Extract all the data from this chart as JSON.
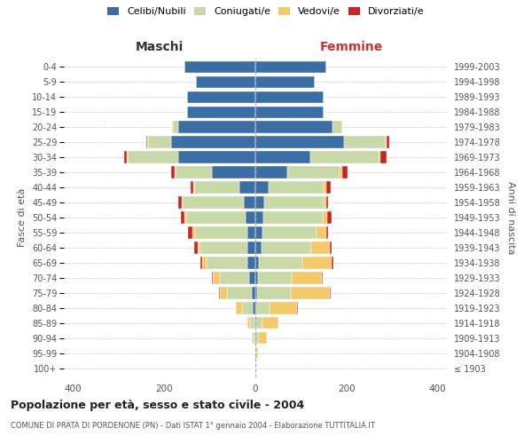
{
  "age_groups": [
    "100+",
    "95-99",
    "90-94",
    "85-89",
    "80-84",
    "75-79",
    "70-74",
    "65-69",
    "60-64",
    "55-59",
    "50-54",
    "45-49",
    "40-44",
    "35-39",
    "30-34",
    "25-29",
    "20-24",
    "15-19",
    "10-14",
    "5-9",
    "0-4"
  ],
  "birth_years": [
    "≤ 1903",
    "1904-1908",
    "1909-1913",
    "1914-1918",
    "1919-1923",
    "1924-1928",
    "1929-1933",
    "1934-1938",
    "1939-1943",
    "1944-1948",
    "1949-1953",
    "1954-1958",
    "1959-1963",
    "1964-1968",
    "1969-1973",
    "1974-1978",
    "1979-1983",
    "1984-1988",
    "1989-1993",
    "1994-1998",
    "1999-2003"
  ],
  "male": {
    "celibi": [
      0,
      0,
      0,
      2,
      5,
      8,
      13,
      17,
      17,
      18,
      22,
      25,
      35,
      95,
      170,
      185,
      170,
      150,
      150,
      130,
      155
    ],
    "coniugati": [
      0,
      2,
      5,
      10,
      25,
      55,
      65,
      90,
      105,
      115,
      130,
      135,
      100,
      80,
      110,
      50,
      10,
      0,
      0,
      0,
      0
    ],
    "vedovi": [
      0,
      0,
      2,
      5,
      12,
      15,
      15,
      10,
      5,
      5,
      3,
      2,
      2,
      2,
      2,
      2,
      2,
      0,
      0,
      0,
      0
    ],
    "divorziati": [
      0,
      0,
      0,
      0,
      0,
      2,
      2,
      3,
      8,
      10,
      8,
      8,
      5,
      8,
      5,
      3,
      0,
      0,
      0,
      0,
      0
    ]
  },
  "female": {
    "nubili": [
      0,
      0,
      0,
      0,
      2,
      3,
      5,
      8,
      13,
      15,
      18,
      20,
      30,
      70,
      120,
      195,
      170,
      150,
      150,
      130,
      155
    ],
    "coniugate": [
      0,
      2,
      8,
      15,
      30,
      75,
      75,
      95,
      110,
      120,
      130,
      130,
      120,
      115,
      150,
      90,
      20,
      0,
      0,
      0,
      0
    ],
    "vedove": [
      0,
      3,
      18,
      35,
      60,
      85,
      65,
      65,
      40,
      20,
      10,
      5,
      5,
      5,
      5,
      3,
      0,
      0,
      0,
      0,
      0
    ],
    "divorziate": [
      0,
      0,
      0,
      0,
      2,
      3,
      3,
      3,
      5,
      5,
      10,
      5,
      10,
      12,
      12,
      5,
      0,
      0,
      0,
      0,
      0
    ]
  },
  "colors": {
    "celibi": "#3A6EA5",
    "coniugati": "#C8D9A8",
    "vedovi": "#F5C96A",
    "divorziati": "#CC2222"
  },
  "title": "Popolazione per età, sesso e stato civile - 2004",
  "subtitle": "COMUNE DI PRATA DI PORDENONE (PN) - Dati ISTAT 1° gennaio 2004 - Elaborazione TUTTITALIA.IT",
  "xlabel_left": "Maschi",
  "xlabel_right": "Femmine",
  "ylabel_left": "Fasce di età",
  "ylabel_right": "Anni di nascita",
  "xlim": 420,
  "background_color": "#ffffff",
  "grid_color": "#cccccc",
  "legend_labels": [
    "Celibi/Nubili",
    "Coniugati/e",
    "Vedovi/e",
    "Divorziati/e"
  ]
}
